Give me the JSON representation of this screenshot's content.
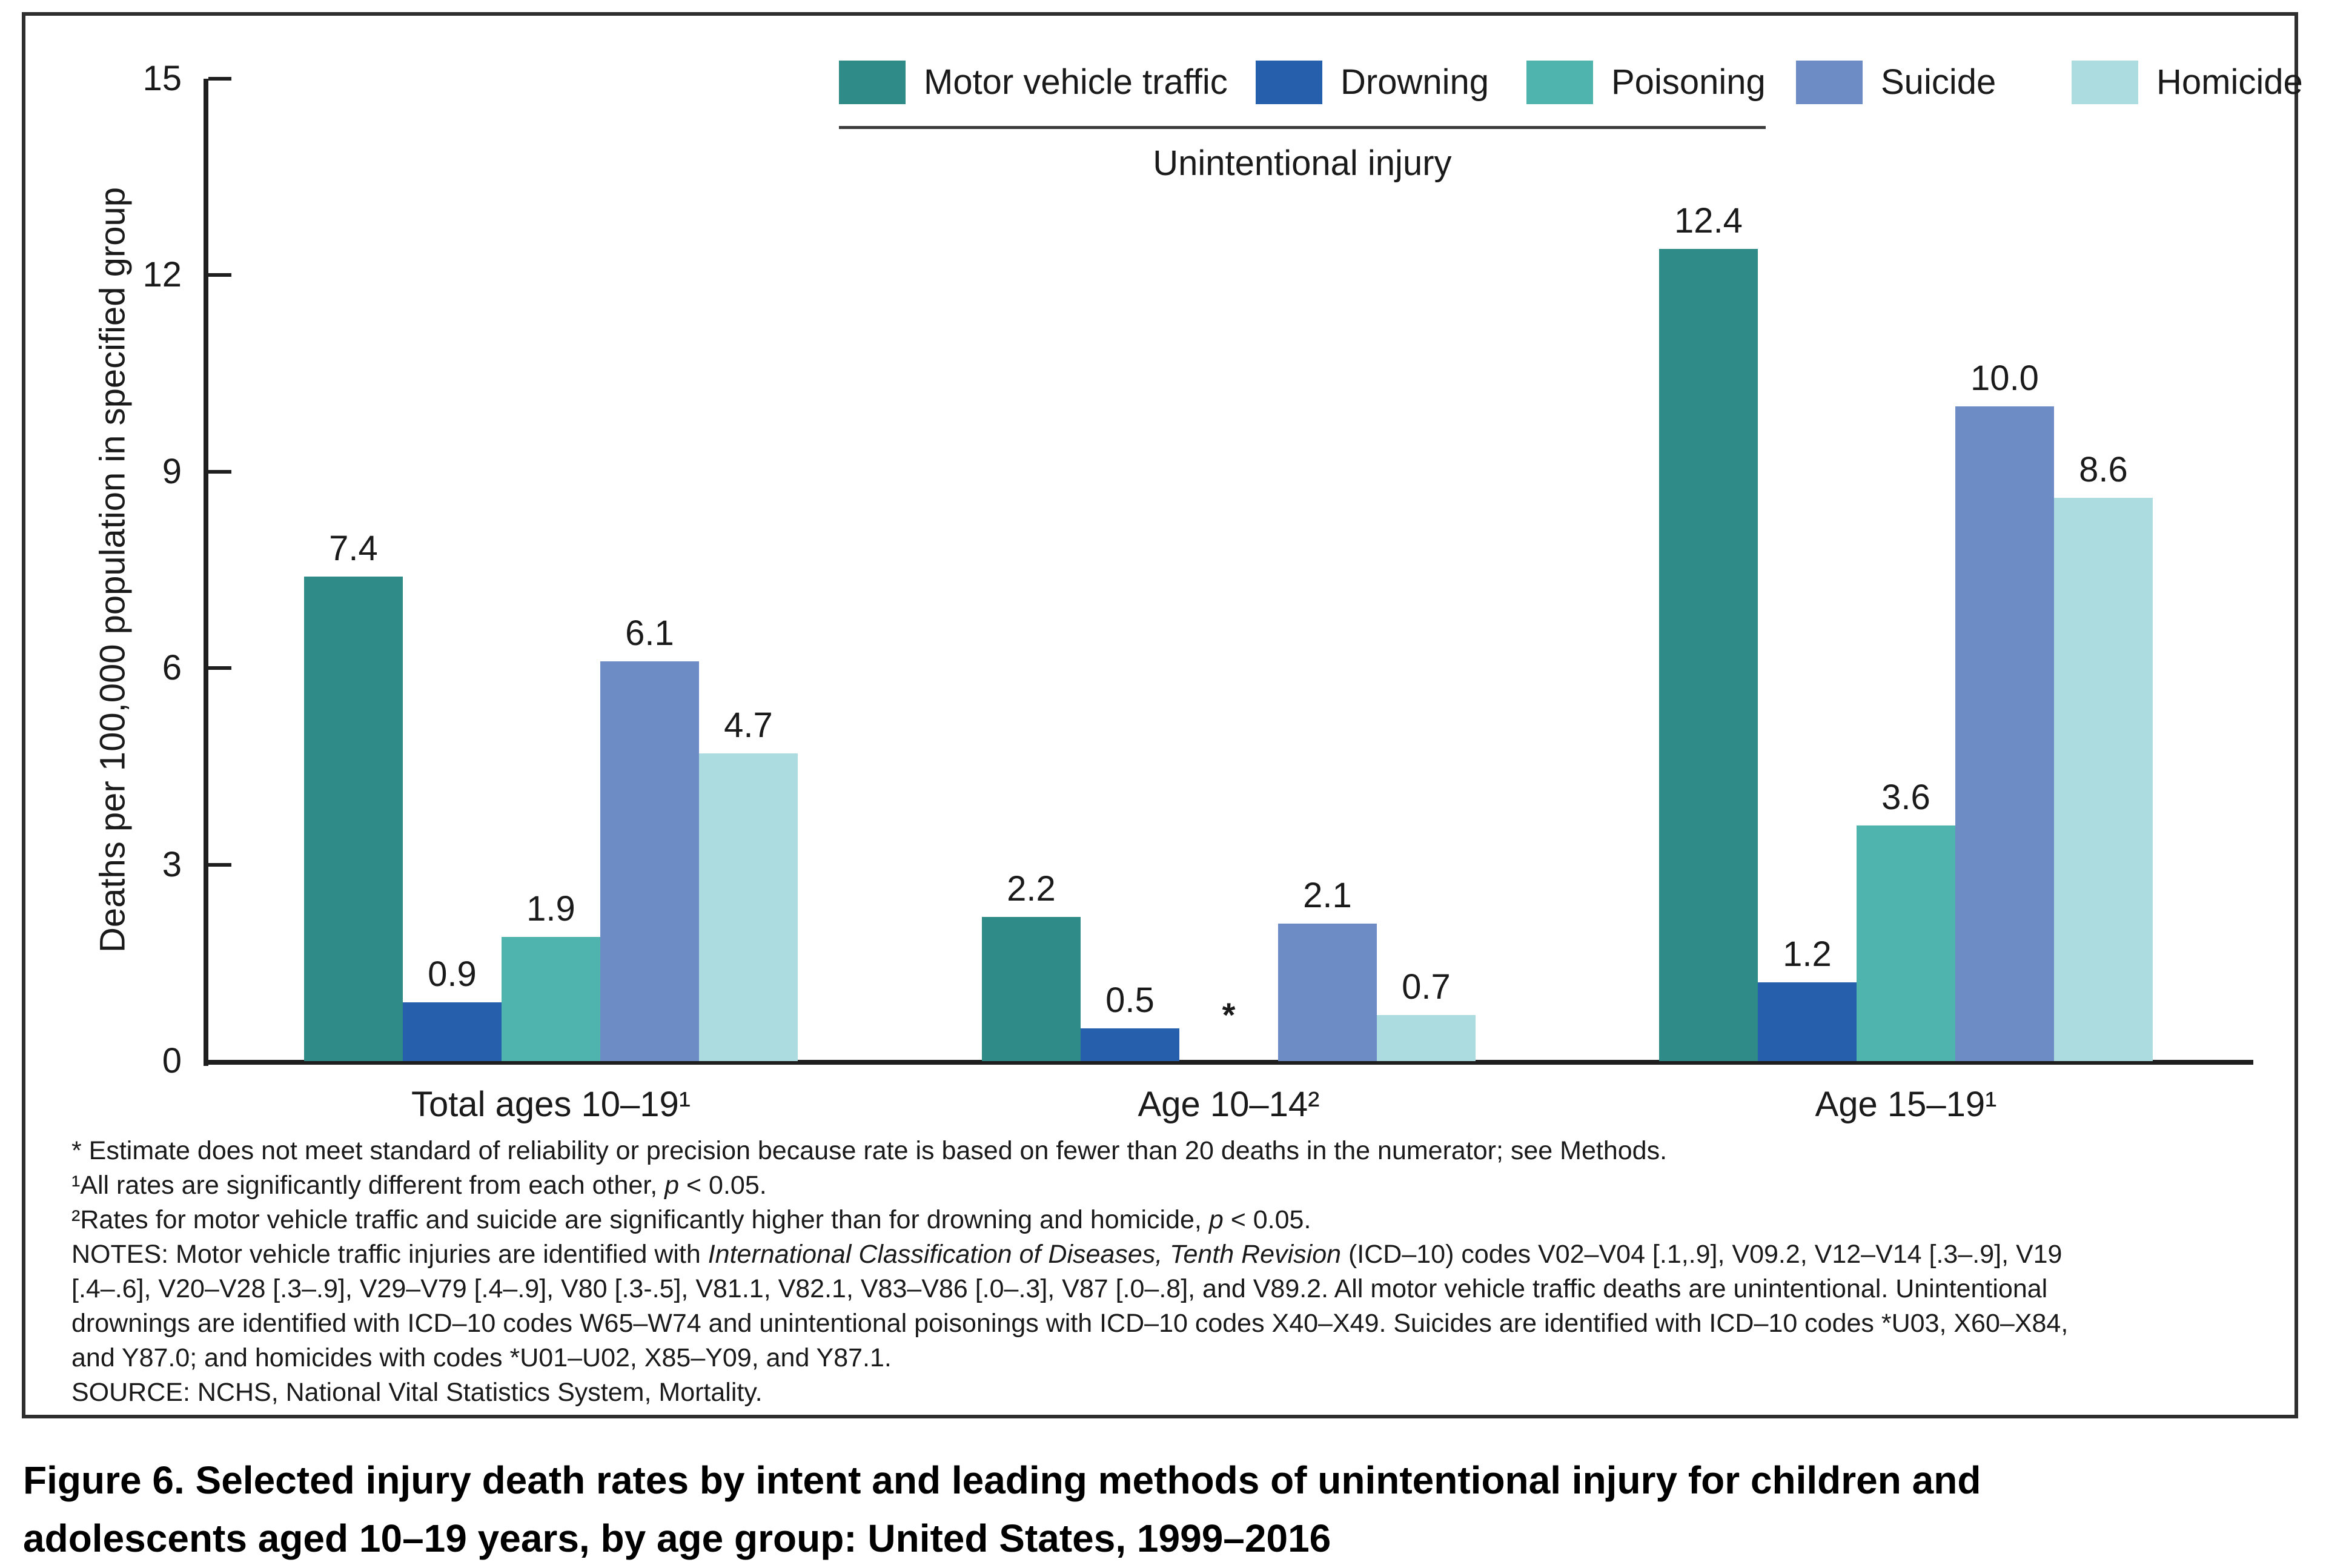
{
  "page": {
    "background": "#ffffff",
    "text_color": "#1a1a1a"
  },
  "legend": {
    "items": [
      {
        "name": "motor-vehicle-traffic",
        "label": "Motor vehicle traffic",
        "color": "#2F8B87"
      },
      {
        "name": "drowning",
        "label": "Drowning",
        "color": "#265FAC"
      },
      {
        "name": "poisoning",
        "label": "Poisoning",
        "color": "#4FB3AE"
      },
      {
        "name": "suicide",
        "label": "Suicide",
        "color": "#6D8BC4"
      },
      {
        "name": "homicide",
        "label": "Homicide",
        "color": "#ACDCE0"
      }
    ],
    "underline_group_label": "Unintentional injury",
    "underline_covers": [
      "Motor vehicle traffic",
      "Drowning",
      "Poisoning"
    ]
  },
  "chart_data": {
    "type": "bar",
    "title": "",
    "xlabel": "",
    "ylabel": "Deaths per 100,000 population in specified group",
    "ylim": [
      0,
      15
    ],
    "yticks": [
      0,
      3,
      6,
      9,
      12,
      15
    ],
    "grid": false,
    "legend_position": "top",
    "categories": [
      "Total ages 10–19¹",
      "Age 10–14²",
      "Age 15–19¹"
    ],
    "series": [
      {
        "name": "Motor vehicle traffic",
        "color": "#2F8B87",
        "values": [
          7.4,
          2.2,
          12.4
        ],
        "labels": [
          "7.4",
          "2.2",
          "12.4"
        ]
      },
      {
        "name": "Drowning",
        "color": "#265FAC",
        "values": [
          0.9,
          0.5,
          1.2
        ],
        "labels": [
          "0.9",
          "0.5",
          "1.2"
        ]
      },
      {
        "name": "Poisoning",
        "color": "#4FB3AE",
        "values": [
          1.9,
          null,
          3.6
        ],
        "labels": [
          "1.9",
          "*",
          "3.6"
        ]
      },
      {
        "name": "Suicide",
        "color": "#6D8BC4",
        "values": [
          6.1,
          2.1,
          10.0
        ],
        "labels": [
          "6.1",
          "2.1",
          "10.0"
        ]
      },
      {
        "name": "Homicide",
        "color": "#ACDCE0",
        "values": [
          4.7,
          0.7,
          8.6
        ],
        "labels": [
          "4.7",
          "0.7",
          "8.6"
        ]
      }
    ],
    "annotations": [
      {
        "symbol": "*",
        "group": "Age 10–14²",
        "series": "Poisoning",
        "meaning": "Estimate does not meet standard of reliability or precision"
      }
    ]
  },
  "footnotes": [
    [
      {
        "t": "* Estimate does not meet standard of reliability or precision because rate is based on fewer than 20 deaths in the numerator; see Methods."
      }
    ],
    [
      {
        "t": "¹All rates are significantly different from each other, "
      },
      {
        "t": "p",
        "i": true
      },
      {
        "t": " < 0.05."
      }
    ],
    [
      {
        "t": "²Rates for motor vehicle traffic and suicide are significantly higher than for drowning and homicide, "
      },
      {
        "t": "p",
        "i": true
      },
      {
        "t": " < 0.05."
      }
    ],
    [
      {
        "t": "NOTES: Motor vehicle traffic injuries are identified with "
      },
      {
        "t": "International Classification of Diseases, Tenth Revision",
        "i": true
      },
      {
        "t": " (ICD–10) codes V02–V04 [.1,.9], V09.2, V12–V14 [.3–.9], V19"
      }
    ],
    [
      {
        "t": "[.4–.6], V20–V28 [.3–.9], V29–V79 [.4–.9], V80 [.3-.5], V81.1, V82.1, V83–V86 [.0–.3], V87 [.0–.8], and V89.2. All motor vehicle traffic deaths are unintentional. Unintentional"
      }
    ],
    [
      {
        "t": "drownings are identified with ICD–10 codes W65–W74 and unintentional poisonings with ICD–10 codes X40–X49. Suicides are identified with ICD–10 codes *U03, X60–X84,"
      }
    ],
    [
      {
        "t": "and Y87.0; and homicides with codes *U01–U02, X85–Y09, and Y87.1."
      }
    ],
    [
      {
        "t": "SOURCE: NCHS, National Vital Statistics System, Mortality."
      }
    ]
  ],
  "figure": {
    "caption": {
      "line1": "Figure 6. Selected injury death rates by intent and leading methods of unintentional injury for children and",
      "line2": "adolescents aged 10–19 years, by age group: United States, 1999–2016"
    }
  }
}
